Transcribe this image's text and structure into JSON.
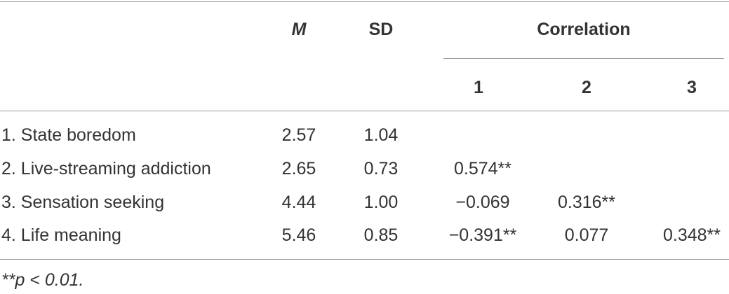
{
  "table": {
    "header": {
      "m": "M",
      "sd": "SD",
      "correlation": "Correlation",
      "sub": [
        "1",
        "2",
        "3"
      ]
    },
    "rows": [
      [
        "1. State boredom",
        "2.57",
        "1.04"
      ],
      [
        "2. Live-streaming addiction",
        "2.65",
        "0.73",
        "0.574**"
      ],
      [
        "3. Sensation seeking",
        "4.44",
        "1.00",
        "−0.069",
        "0.316**"
      ],
      [
        "4. Life meaning",
        "5.46",
        "0.85",
        "−0.391**",
        "0.077",
        "0.348**"
      ]
    ],
    "footnote": "**p < 0.01."
  }
}
